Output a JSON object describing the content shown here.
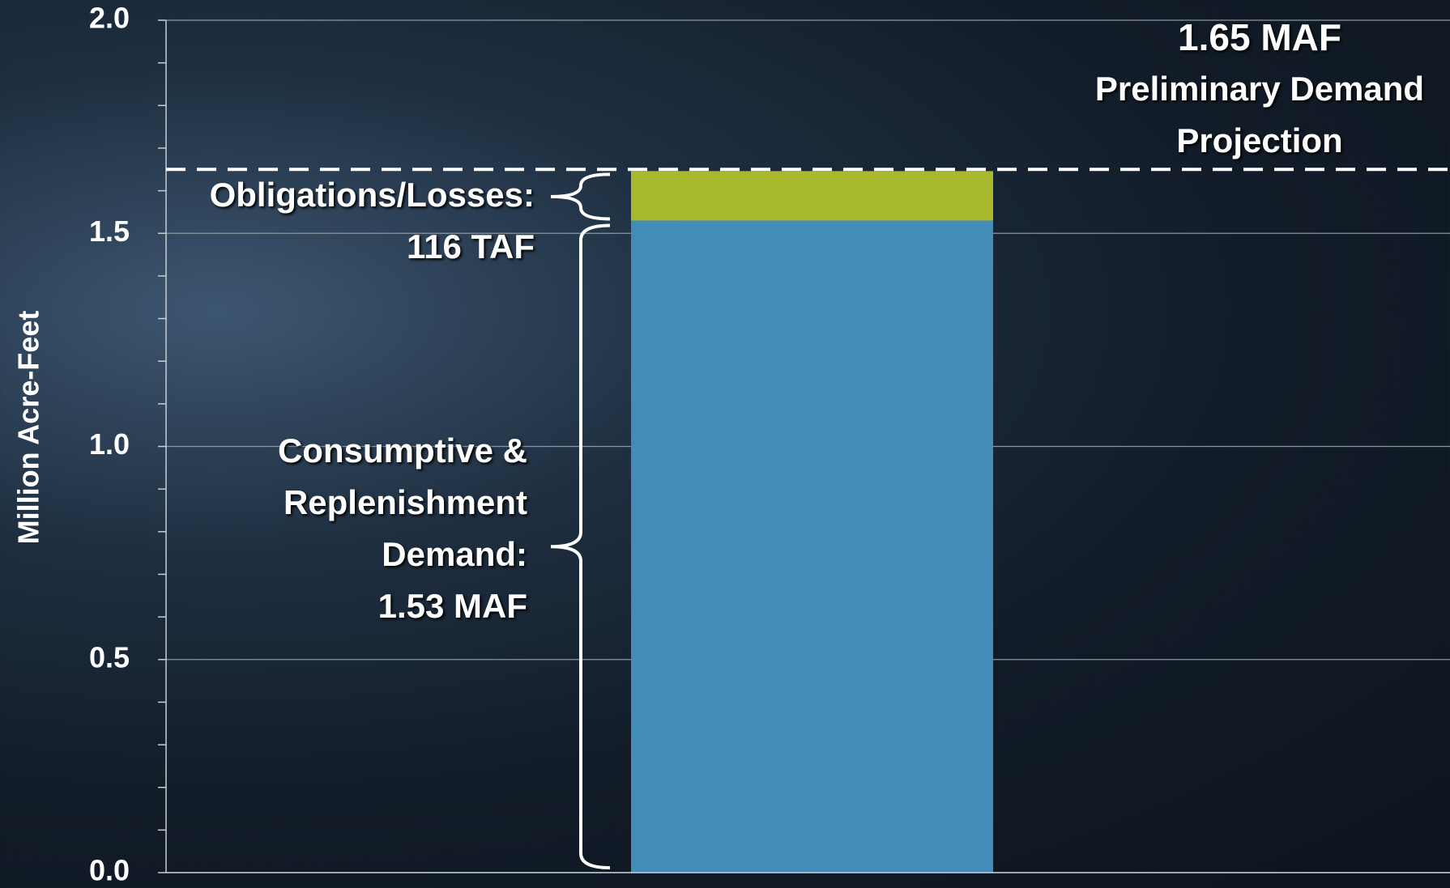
{
  "chart_data": {
    "type": "stacked_bar",
    "y_label": "Million Acre-Feet",
    "categories": [
      null
    ],
    "series": [
      {
        "name": "Consumptive & Replenishment Demand:",
        "color": "#438cb8",
        "values": [
          1.53
        ],
        "value_labels": [
          "1.53 MAF"
        ]
      },
      {
        "name": "Obligations/Losses:",
        "color": "#a8b92e",
        "values": [
          0.116
        ],
        "value_labels": [
          "116 TAF"
        ]
      }
    ],
    "reference_line": {
      "value": 1.65,
      "label": "1.65 MAF",
      "text": "Preliminary Demand Projection"
    },
    "ylim": [
      0,
      2
    ],
    "yticks": [
      {
        "value": 0,
        "label": "0.0"
      },
      0.5,
      {
        "value": 1,
        "label": "1.0"
      },
      1.5,
      {
        "value": 2,
        "label": "2.0"
      }
    ],
    "minor_yticks": [
      0.1,
      0.2,
      0.3,
      0.4,
      0.6,
      0.7,
      0.8,
      0.9,
      1.1,
      1.2,
      1.3,
      1.4,
      1.6,
      1.7,
      1.8,
      1.9
    ],
    "grid": true
  }
}
